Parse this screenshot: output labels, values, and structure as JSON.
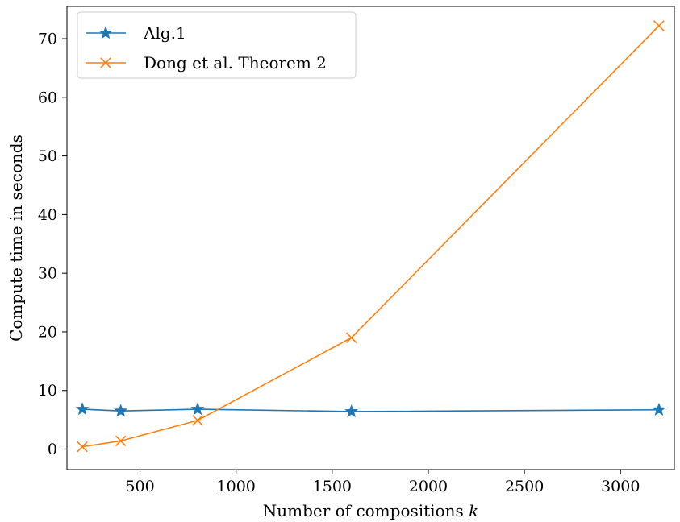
{
  "chart_data": {
    "type": "line",
    "title": "",
    "xlabel": "Number of compositions k",
    "xlabel_main": "Number of compositions ",
    "xlabel_var": "k",
    "ylabel": "Compute time in seconds",
    "xlim": [
      120,
      3280
    ],
    "ylim": [
      -3.5,
      75.5
    ],
    "xticks": [
      500,
      1000,
      1500,
      2000,
      2500,
      3000
    ],
    "yticks": [
      0,
      10,
      20,
      30,
      40,
      50,
      60,
      70
    ],
    "grid": false,
    "legend_position": "top-left",
    "series": [
      {
        "name": "Alg.1",
        "color": "#1f77b4",
        "marker": "star",
        "x": [
          200,
          400,
          800,
          1600,
          3200
        ],
        "y": [
          6.8,
          6.5,
          6.8,
          6.4,
          6.7
        ]
      },
      {
        "name": "Dong et al. Theorem 2",
        "color": "#ff7f0e",
        "marker": "x",
        "x": [
          200,
          400,
          800,
          1600,
          3200
        ],
        "y": [
          0.4,
          1.4,
          4.9,
          19.0,
          72.2
        ]
      }
    ]
  }
}
